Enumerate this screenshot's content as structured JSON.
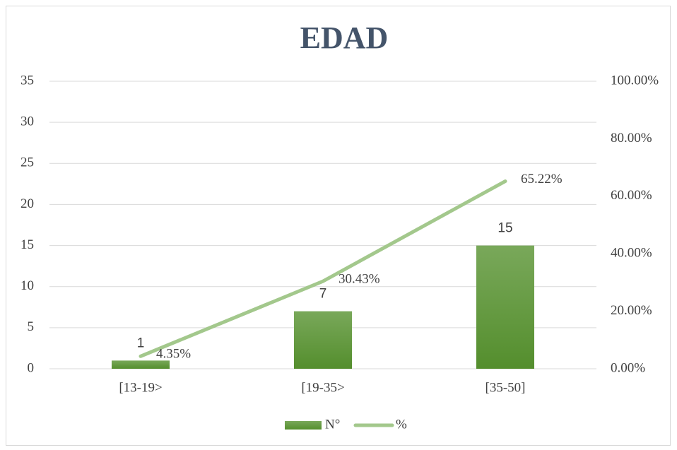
{
  "chart_data": {
    "type": "bar",
    "title": "EDAD",
    "categories": [
      "[13-19>",
      "[19-35>",
      "[35-50]"
    ],
    "series": [
      {
        "name": "N°",
        "type": "bar",
        "color": "#5e9a37",
        "values": [
          1,
          7,
          15
        ]
      },
      {
        "name": "%",
        "type": "line",
        "axis": "y2",
        "color": "#a3c88c",
        "values": [
          4.35,
          30.43,
          65.22
        ],
        "value_labels": [
          "4.35%",
          "30.43%",
          "65.22%"
        ]
      }
    ],
    "ylim": [
      0,
      35
    ],
    "yticks": [
      0,
      5,
      10,
      15,
      20,
      25,
      30,
      35
    ],
    "y2lim": [
      0,
      100
    ],
    "y2ticks": [
      {
        "value": 0,
        "label": "0.00%"
      },
      {
        "value": 20,
        "label": "20.00%"
      },
      {
        "value": 40,
        "label": "40.00%"
      },
      {
        "value": 60,
        "label": "60.00%"
      },
      {
        "value": 80,
        "label": "80.00%"
      },
      {
        "value": 100,
        "label": "100.00%"
      }
    ],
    "grid": true,
    "legend": "bottom"
  }
}
